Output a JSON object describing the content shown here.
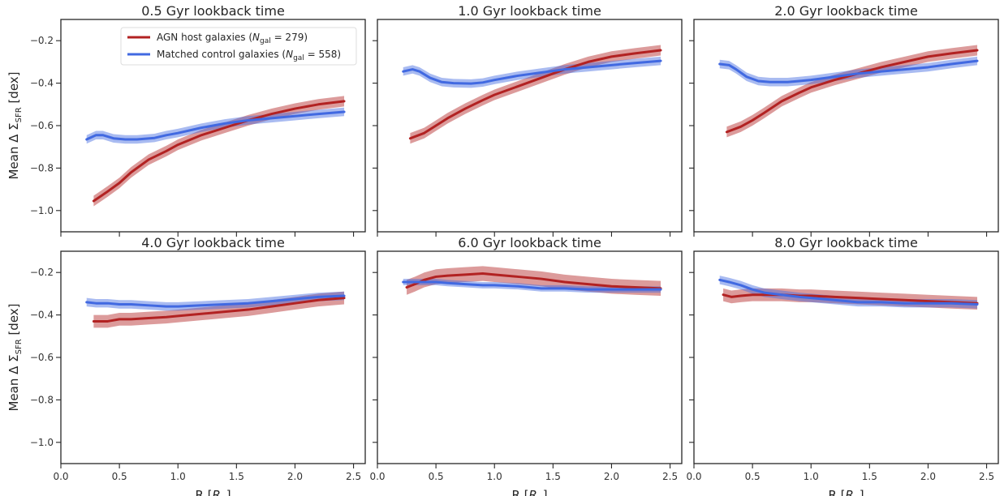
{
  "chart_data": [
    {
      "type": "line",
      "title": "0.5 Gyr lookback time",
      "xlabel": "R [R_e]",
      "ylabel": "Mean Δ Σ_SFR [dex]",
      "xlim": [
        0.0,
        2.6
      ],
      "ylim": [
        -1.1,
        -0.1
      ],
      "xticks": [
        "0.0",
        "0.5",
        "1.0",
        "1.5",
        "2.0",
        "2.5"
      ],
      "yticks": [
        "-0.2",
        "-0.4",
        "-0.6",
        "-0.8",
        "-1.0"
      ],
      "legend": "top-center",
      "series": [
        {
          "name": "AGN host galaxies (N_gal = 279)",
          "color": "#b22222",
          "x": [
            0.28,
            0.4,
            0.5,
            0.6,
            0.75,
            0.9,
            1.0,
            1.2,
            1.4,
            1.6,
            1.8,
            2.0,
            2.2,
            2.42
          ],
          "y": [
            -0.955,
            -0.91,
            -0.87,
            -0.82,
            -0.76,
            -0.72,
            -0.69,
            -0.645,
            -0.61,
            -0.575,
            -0.545,
            -0.52,
            -0.5,
            -0.485
          ],
          "band": 0.025
        },
        {
          "name": "Matched control galaxies (N_gal = 558)",
          "color": "#4169e1",
          "x": [
            0.22,
            0.3,
            0.36,
            0.45,
            0.55,
            0.65,
            0.8,
            0.9,
            1.0,
            1.2,
            1.4,
            1.6,
            1.8,
            2.0,
            2.2,
            2.42
          ],
          "y": [
            -0.665,
            -0.645,
            -0.645,
            -0.66,
            -0.665,
            -0.665,
            -0.658,
            -0.645,
            -0.635,
            -0.61,
            -0.59,
            -0.575,
            -0.565,
            -0.555,
            -0.545,
            -0.535
          ],
          "band": 0.02
        }
      ]
    },
    {
      "type": "line",
      "title": "1.0 Gyr lookback time",
      "xlim": [
        0.0,
        2.6
      ],
      "ylim": [
        -1.1,
        -0.1
      ],
      "series": [
        {
          "name": "AGN host galaxies",
          "color": "#b22222",
          "x": [
            0.28,
            0.4,
            0.5,
            0.6,
            0.75,
            0.9,
            1.0,
            1.2,
            1.4,
            1.6,
            1.8,
            2.0,
            2.2,
            2.42
          ],
          "y": [
            -0.66,
            -0.635,
            -0.6,
            -0.565,
            -0.52,
            -0.48,
            -0.455,
            -0.415,
            -0.375,
            -0.335,
            -0.3,
            -0.275,
            -0.26,
            -0.245
          ],
          "band": 0.025
        },
        {
          "name": "Matched control galaxies",
          "color": "#4169e1",
          "x": [
            0.22,
            0.3,
            0.36,
            0.45,
            0.55,
            0.65,
            0.8,
            0.9,
            1.0,
            1.2,
            1.4,
            1.6,
            1.8,
            2.0,
            2.2,
            2.42
          ],
          "y": [
            -0.345,
            -0.335,
            -0.345,
            -0.375,
            -0.395,
            -0.4,
            -0.402,
            -0.397,
            -0.385,
            -0.365,
            -0.35,
            -0.335,
            -0.325,
            -0.315,
            -0.305,
            -0.295
          ],
          "band": 0.02
        }
      ]
    },
    {
      "type": "line",
      "title": "2.0 Gyr lookback time",
      "xlim": [
        0.0,
        2.6
      ],
      "ylim": [
        -1.1,
        -0.1
      ],
      "series": [
        {
          "name": "AGN host galaxies",
          "color": "#b22222",
          "x": [
            0.28,
            0.4,
            0.5,
            0.6,
            0.75,
            0.9,
            1.0,
            1.2,
            1.4,
            1.6,
            1.8,
            2.0,
            2.2,
            2.42
          ],
          "y": [
            -0.63,
            -0.605,
            -0.575,
            -0.54,
            -0.485,
            -0.445,
            -0.42,
            -0.385,
            -0.355,
            -0.325,
            -0.3,
            -0.275,
            -0.26,
            -0.245
          ],
          "band": 0.025
        },
        {
          "name": "Matched control galaxies",
          "color": "#4169e1",
          "x": [
            0.22,
            0.3,
            0.36,
            0.45,
            0.55,
            0.65,
            0.8,
            0.9,
            1.0,
            1.2,
            1.4,
            1.6,
            1.8,
            2.0,
            2.2,
            2.42
          ],
          "y": [
            -0.31,
            -0.315,
            -0.335,
            -0.37,
            -0.39,
            -0.395,
            -0.395,
            -0.39,
            -0.385,
            -0.37,
            -0.355,
            -0.345,
            -0.335,
            -0.325,
            -0.31,
            -0.295
          ],
          "band": 0.02
        }
      ]
    },
    {
      "type": "line",
      "title": "4.0 Gyr lookback time",
      "xlim": [
        0.0,
        2.6
      ],
      "ylim": [
        -1.1,
        -0.1
      ],
      "series": [
        {
          "name": "AGN host galaxies",
          "color": "#b22222",
          "x": [
            0.28,
            0.4,
            0.5,
            0.6,
            0.75,
            0.9,
            1.0,
            1.2,
            1.4,
            1.6,
            1.8,
            2.0,
            2.2,
            2.42
          ],
          "y": [
            -0.43,
            -0.43,
            -0.42,
            -0.42,
            -0.415,
            -0.41,
            -0.405,
            -0.395,
            -0.385,
            -0.375,
            -0.36,
            -0.345,
            -0.33,
            -0.32
          ],
          "band": 0.03
        },
        {
          "name": "Matched control galaxies",
          "color": "#4169e1",
          "x": [
            0.22,
            0.3,
            0.4,
            0.5,
            0.6,
            0.75,
            0.9,
            1.0,
            1.2,
            1.4,
            1.6,
            1.8,
            2.0,
            2.2,
            2.42
          ],
          "y": [
            -0.34,
            -0.345,
            -0.345,
            -0.35,
            -0.35,
            -0.355,
            -0.36,
            -0.36,
            -0.355,
            -0.35,
            -0.345,
            -0.335,
            -0.325,
            -0.315,
            -0.31
          ],
          "band": 0.02
        }
      ]
    },
    {
      "type": "line",
      "title": "6.0 Gyr lookback time",
      "xlim": [
        0.0,
        2.6
      ],
      "ylim": [
        -1.1,
        -0.1
      ],
      "series": [
        {
          "name": "AGN host galaxies",
          "color": "#b22222",
          "x": [
            0.25,
            0.32,
            0.4,
            0.5,
            0.6,
            0.75,
            0.9,
            1.0,
            1.2,
            1.4,
            1.6,
            1.8,
            2.0,
            2.2,
            2.42
          ],
          "y": [
            -0.27,
            -0.255,
            -0.235,
            -0.22,
            -0.215,
            -0.21,
            -0.205,
            -0.21,
            -0.22,
            -0.23,
            -0.245,
            -0.255,
            -0.265,
            -0.27,
            -0.275
          ],
          "band": 0.035
        },
        {
          "name": "Matched control galaxies",
          "color": "#4169e1",
          "x": [
            0.22,
            0.3,
            0.4,
            0.5,
            0.6,
            0.75,
            0.9,
            1.0,
            1.2,
            1.4,
            1.6,
            1.8,
            2.0,
            2.2,
            2.42
          ],
          "y": [
            -0.245,
            -0.245,
            -0.245,
            -0.245,
            -0.25,
            -0.255,
            -0.26,
            -0.26,
            -0.265,
            -0.275,
            -0.275,
            -0.28,
            -0.28,
            -0.28,
            -0.28
          ],
          "band": 0.015
        }
      ]
    },
    {
      "type": "line",
      "title": "8.0 Gyr lookback time",
      "xlim": [
        0.0,
        2.6
      ],
      "ylim": [
        -1.1,
        -0.1
      ],
      "series": [
        {
          "name": "AGN host galaxies",
          "color": "#b22222",
          "x": [
            0.25,
            0.32,
            0.4,
            0.5,
            0.6,
            0.75,
            0.9,
            1.0,
            1.2,
            1.4,
            1.6,
            1.8,
            2.0,
            2.2,
            2.42
          ],
          "y": [
            -0.305,
            -0.315,
            -0.31,
            -0.305,
            -0.305,
            -0.305,
            -0.31,
            -0.31,
            -0.315,
            -0.32,
            -0.325,
            -0.33,
            -0.335,
            -0.34,
            -0.345
          ],
          "band": 0.03
        },
        {
          "name": "Matched control galaxies",
          "color": "#4169e1",
          "x": [
            0.22,
            0.3,
            0.4,
            0.5,
            0.6,
            0.75,
            0.9,
            1.0,
            1.2,
            1.4,
            1.6,
            1.8,
            2.0,
            2.2,
            2.42
          ],
          "y": [
            -0.235,
            -0.245,
            -0.26,
            -0.28,
            -0.295,
            -0.305,
            -0.315,
            -0.32,
            -0.33,
            -0.34,
            -0.34,
            -0.345,
            -0.345,
            -0.345,
            -0.35
          ],
          "band": 0.02
        }
      ]
    }
  ]
}
